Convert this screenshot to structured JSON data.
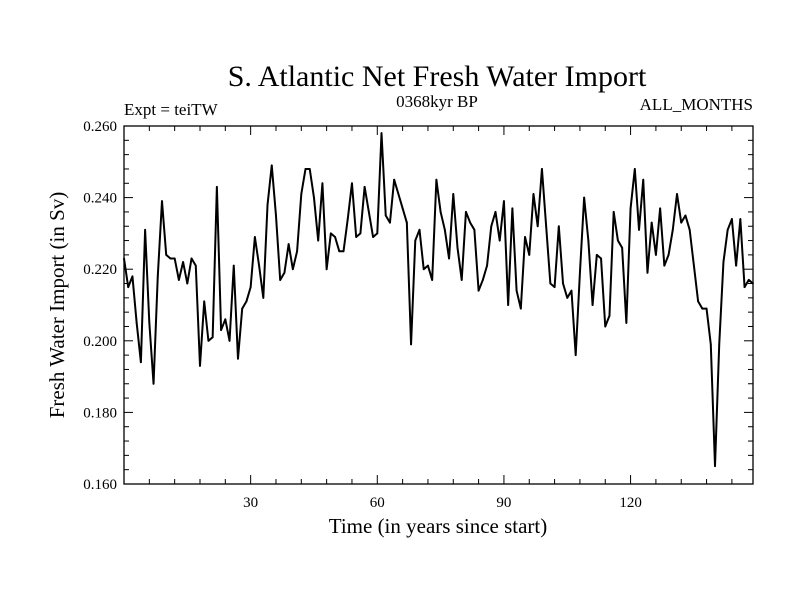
{
  "chart_data": {
    "type": "line",
    "title": "S. Atlantic Net Fresh Water Import",
    "subtitle_left": "Expt = teiTW",
    "subtitle_center": "0368kyr BP",
    "subtitle_right": "ALL_MONTHS",
    "xlabel": "Time (in years since start)",
    "ylabel": "Fresh Water Import (in Sv)",
    "xlim": [
      0,
      149
    ],
    "ylim": [
      0.16,
      0.26
    ],
    "xticks": [
      30,
      60,
      90,
      120
    ],
    "xtick_labels": [
      "30",
      "60",
      "90",
      "120"
    ],
    "yticks": [
      0.16,
      0.18,
      0.2,
      0.22,
      0.24,
      0.26
    ],
    "ytick_labels": [
      "0.160",
      "0.180",
      "0.200",
      "0.220",
      "0.240",
      "0.260"
    ],
    "series": [
      {
        "name": "Net Fresh Water Import",
        "color": "#000000",
        "x": [
          0,
          1,
          2,
          3,
          4,
          5,
          6,
          7,
          8,
          9,
          10,
          11,
          12,
          13,
          14,
          15,
          16,
          17,
          18,
          19,
          20,
          21,
          22,
          23,
          24,
          25,
          26,
          27,
          28,
          29,
          30,
          31,
          32,
          33,
          34,
          35,
          36,
          37,
          38,
          39,
          40,
          41,
          42,
          43,
          44,
          45,
          46,
          47,
          48,
          49,
          50,
          51,
          52,
          53,
          54,
          55,
          56,
          57,
          58,
          59,
          60,
          61,
          62,
          63,
          64,
          65,
          66,
          67,
          68,
          69,
          70,
          71,
          72,
          73,
          74,
          75,
          76,
          77,
          78,
          79,
          80,
          81,
          82,
          83,
          84,
          85,
          86,
          87,
          88,
          89,
          90,
          91,
          92,
          93,
          94,
          95,
          96,
          97,
          98,
          99,
          100,
          101,
          102,
          103,
          104,
          105,
          106,
          107,
          108,
          109,
          110,
          111,
          112,
          113,
          114,
          115,
          116,
          117,
          118,
          119,
          120,
          121,
          122,
          123,
          124,
          125,
          126,
          127,
          128,
          129,
          130,
          131,
          132,
          133,
          134,
          135,
          136,
          137,
          138,
          139,
          140,
          141,
          142,
          143,
          144,
          145,
          146,
          147,
          148,
          149
        ],
        "values": [
          0.223,
          0.215,
          0.218,
          0.205,
          0.194,
          0.231,
          0.205,
          0.188,
          0.218,
          0.239,
          0.224,
          0.223,
          0.223,
          0.217,
          0.222,
          0.216,
          0.223,
          0.221,
          0.193,
          0.211,
          0.2,
          0.201,
          0.243,
          0.203,
          0.206,
          0.2,
          0.221,
          0.195,
          0.209,
          0.211,
          0.215,
          0.229,
          0.221,
          0.212,
          0.238,
          0.249,
          0.235,
          0.217,
          0.219,
          0.227,
          0.22,
          0.225,
          0.241,
          0.248,
          0.248,
          0.24,
          0.228,
          0.244,
          0.22,
          0.23,
          0.229,
          0.225,
          0.225,
          0.234,
          0.244,
          0.229,
          0.23,
          0.243,
          0.236,
          0.229,
          0.23,
          0.258,
          0.235,
          0.233,
          0.245,
          0.241,
          0.237,
          0.233,
          0.199,
          0.228,
          0.231,
          0.22,
          0.221,
          0.217,
          0.245,
          0.236,
          0.231,
          0.223,
          0.241,
          0.226,
          0.217,
          0.236,
          0.233,
          0.231,
          0.214,
          0.217,
          0.221,
          0.232,
          0.236,
          0.228,
          0.239,
          0.21,
          0.237,
          0.214,
          0.209,
          0.229,
          0.224,
          0.241,
          0.232,
          0.248,
          0.232,
          0.216,
          0.215,
          0.232,
          0.216,
          0.212,
          0.214,
          0.196,
          0.219,
          0.24,
          0.228,
          0.21,
          0.224,
          0.223,
          0.204,
          0.207,
          0.236,
          0.228,
          0.226,
          0.205,
          0.237,
          0.248,
          0.231,
          0.245,
          0.219,
          0.233,
          0.224,
          0.237,
          0.221,
          0.224,
          0.231,
          0.241,
          0.233,
          0.235,
          0.231,
          0.221,
          0.211,
          0.209,
          0.209,
          0.199,
          0.165,
          0.199,
          0.222,
          0.231,
          0.234,
          0.221,
          0.234,
          0.215,
          0.217,
          0.216
        ]
      }
    ]
  }
}
